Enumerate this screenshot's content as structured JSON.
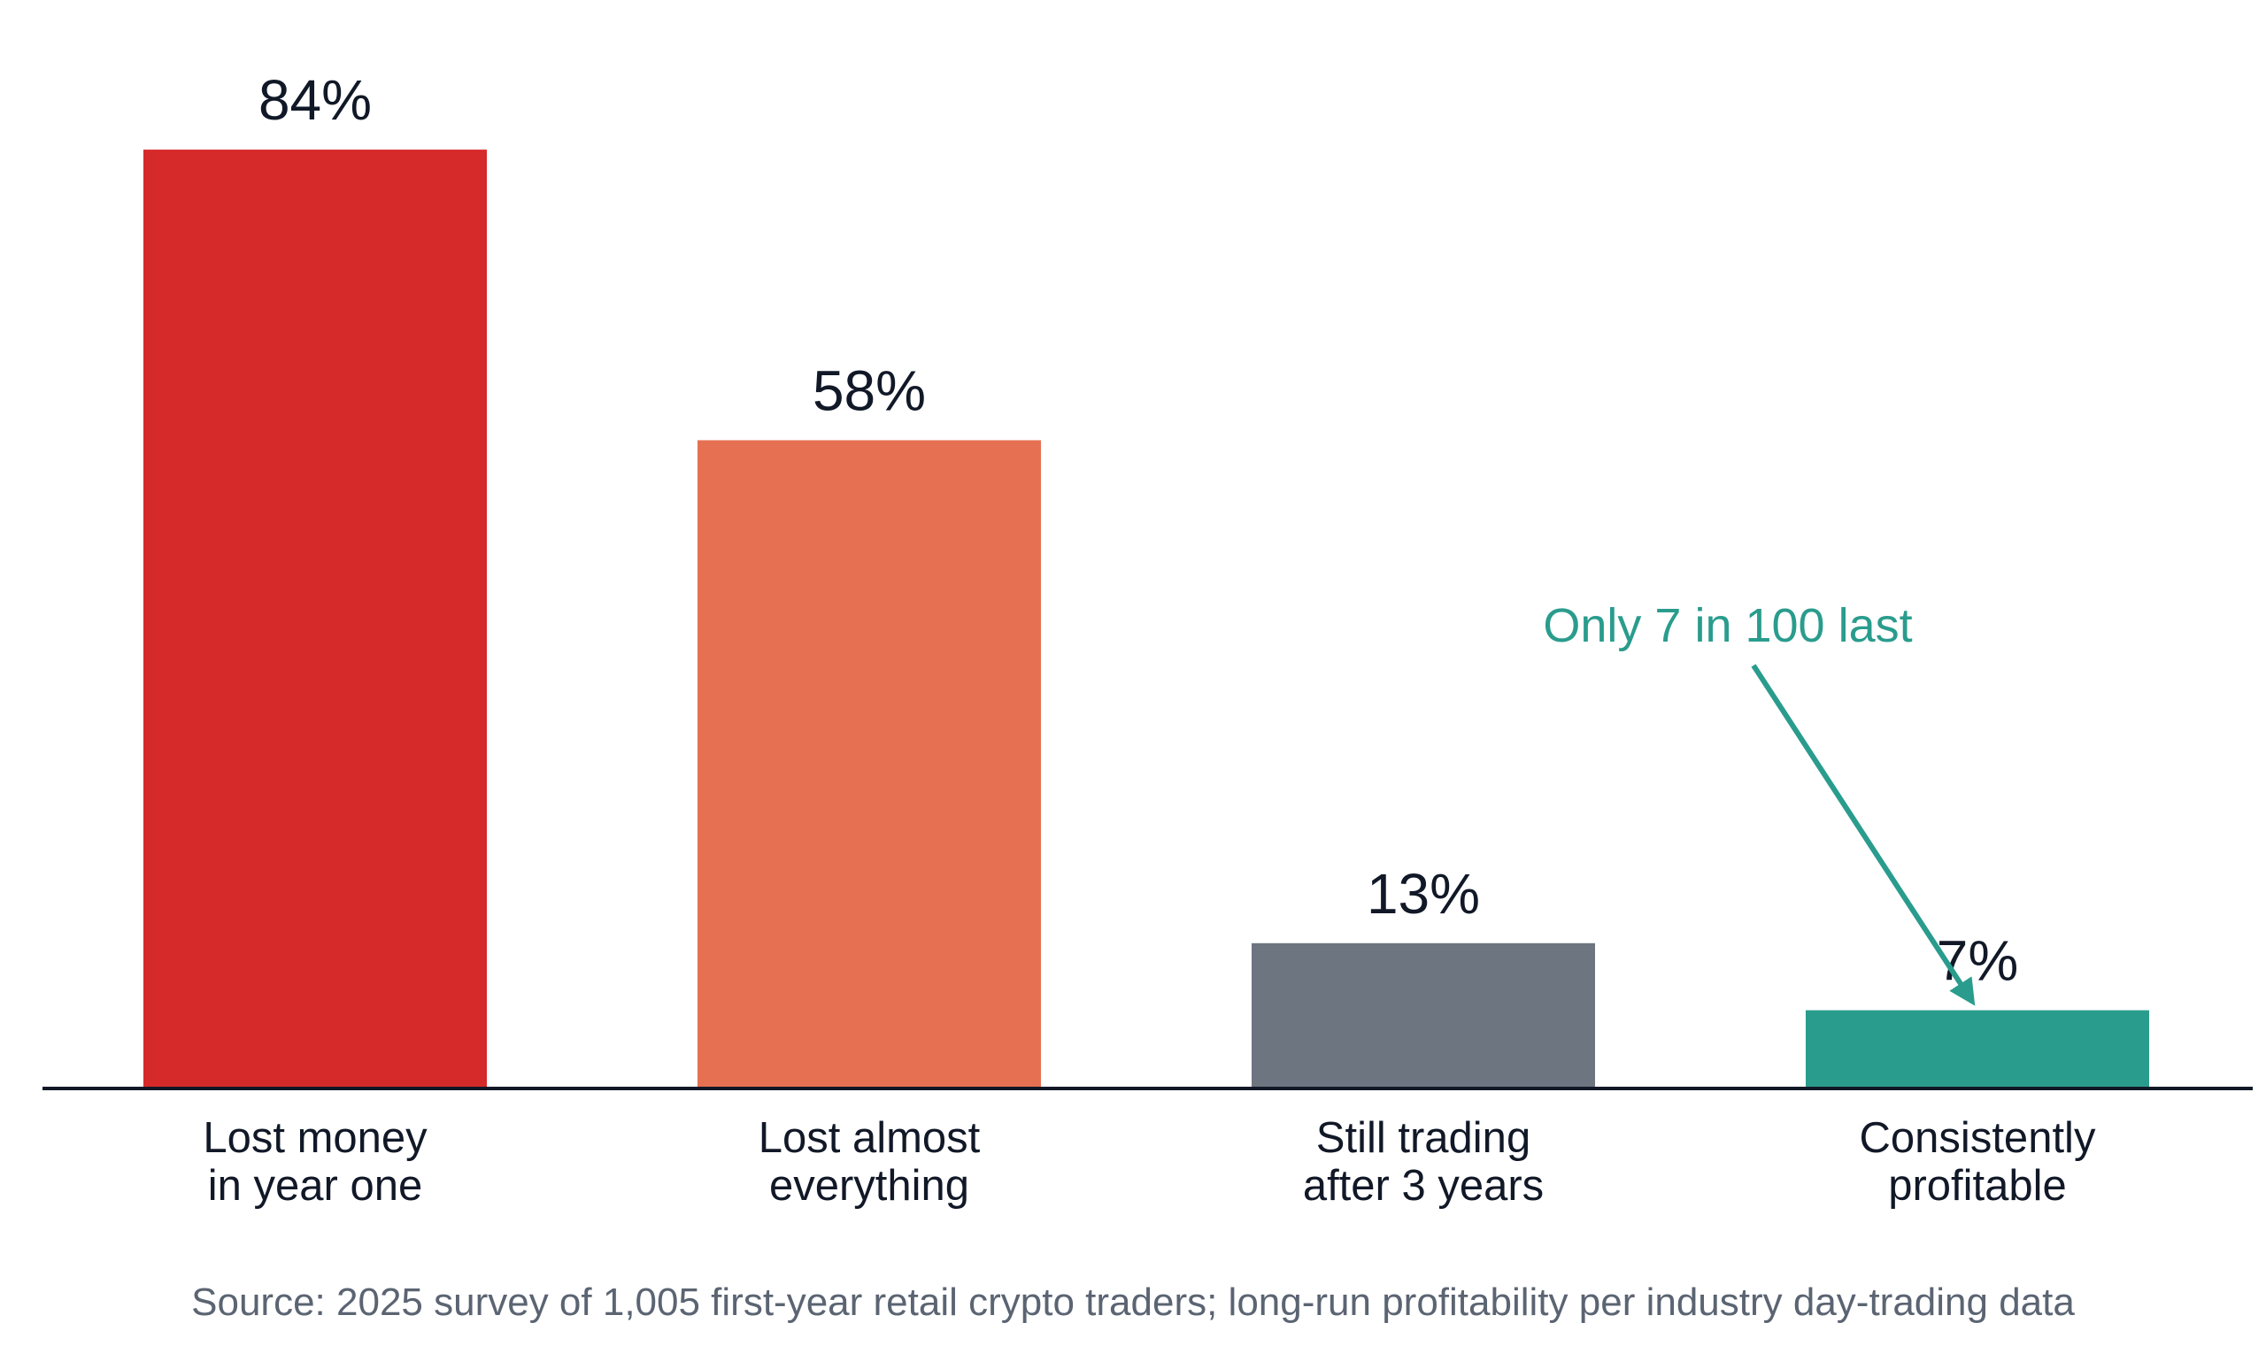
{
  "chart_data": {
    "type": "bar",
    "categories": [
      [
        "Lost money",
        "in year one"
      ],
      [
        "Lost almost",
        "everything"
      ],
      [
        "Still trading",
        "after 3 years"
      ],
      [
        "Consistently",
        "profitable"
      ]
    ],
    "values": [
      84,
      58,
      13,
      7
    ],
    "value_labels": [
      "84%",
      "58%",
      "13%",
      "7%"
    ],
    "bar_colors": [
      "#d62a2a",
      "#e67052",
      "#6d7580",
      "#2a9c8d"
    ],
    "ylim": [
      0,
      100
    ],
    "grid": false,
    "annotation": {
      "text": "Only 7 in 100 last",
      "target_category_index": 3,
      "color": "#2a9c8d"
    },
    "source": "Source: 2025 survey of 1,005 first-year retail crypto traders; long-run profitability per industry day-trading data"
  }
}
